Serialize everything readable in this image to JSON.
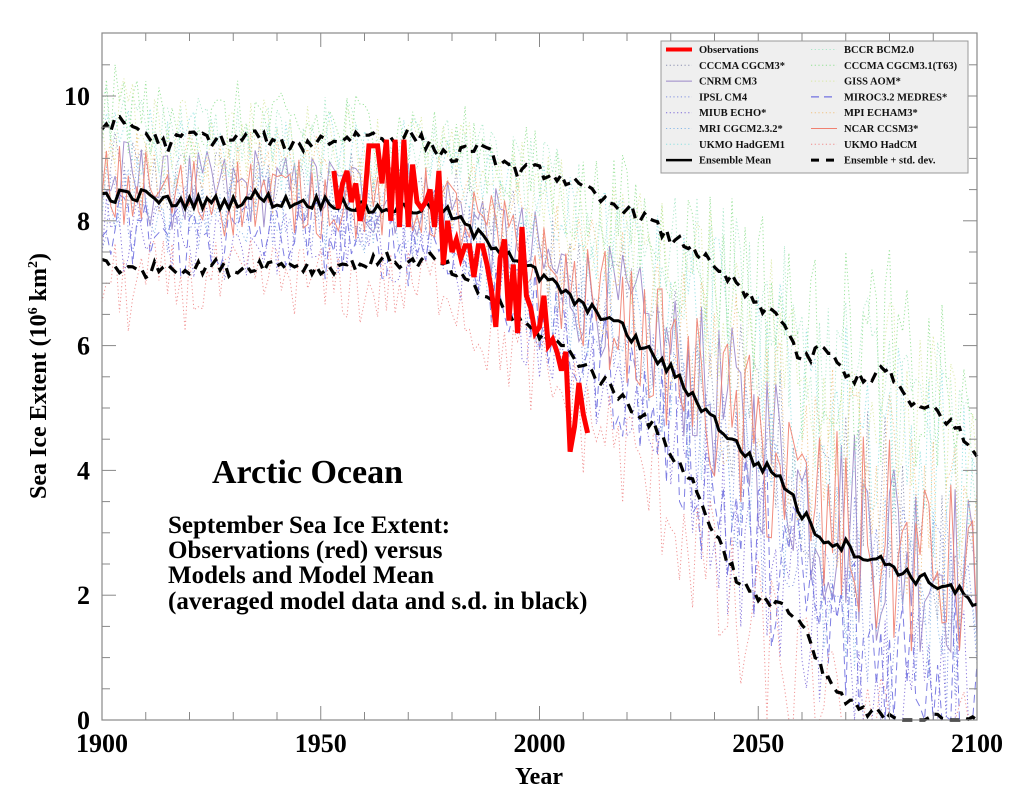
{
  "chart_data": {
    "type": "line",
    "title": "Arctic Ocean",
    "subtitle_lines": [
      "September Sea Ice Extent:",
      "Observations (red) versus",
      "Models and Model Mean",
      "(averaged model data and s.d. in black)"
    ],
    "xlabel": "Year",
    "ylabel": "Sea Ice Extent (10⁶ km²)",
    "ylabel_parts": {
      "main": "Sea Ice Extent (10",
      "sup1": "6",
      "mid": " km",
      "sup2": "2",
      "end": ")"
    },
    "xlim": [
      1900,
      2100
    ],
    "ylim": [
      0,
      11
    ],
    "x_ticks": [
      1900,
      1950,
      2000,
      2050,
      2100
    ],
    "x_tick_labels": [
      "1900",
      "1950",
      "2000",
      "2050",
      "2100"
    ],
    "y_ticks": [
      0,
      2,
      4,
      6,
      8,
      10
    ],
    "y_tick_labels": [
      "0",
      "2",
      "4",
      "6",
      "8",
      "10"
    ],
    "x_minor_step": 10,
    "y_minor_step": 1,
    "grid": false,
    "legend_position": "top-right",
    "legend": [
      {
        "label": "Observations",
        "color": "#ff0000",
        "style": "thick-solid",
        "column": 0
      },
      {
        "label": "CCCMA CGCM3*",
        "color": "#8a8fb0",
        "style": "dotted",
        "column": 0
      },
      {
        "label": "CNRM CM3",
        "color": "#9a86c8",
        "style": "solid",
        "column": 0
      },
      {
        "label": "IPSL CM4",
        "color": "#7f8fe0",
        "style": "dotted",
        "column": 0
      },
      {
        "label": "MIUB ECHO*",
        "color": "#7a66d8",
        "style": "dotted",
        "column": 0
      },
      {
        "label": "MRI CGCM2.3.2*",
        "color": "#88b8e8",
        "style": "dotted",
        "column": 0
      },
      {
        "label": "UKMO HadGEM1",
        "color": "#8ee0e0",
        "style": "dotted",
        "column": 0
      },
      {
        "label": "Ensemble Mean",
        "color": "#000000",
        "style": "solid",
        "column": 0
      },
      {
        "label": "BCCR BCM2.0",
        "color": "#a8e8c8",
        "style": "dotted",
        "column": 1
      },
      {
        "label": "CCCMA CGCM3.1(T63)",
        "color": "#90e090",
        "style": "dotted",
        "column": 1
      },
      {
        "label": "GISS AOM*",
        "color": "#d8e8a0",
        "style": "dotted",
        "column": 1
      },
      {
        "label": "MIROC3.2 MEDRES*",
        "color": "#7070e0",
        "style": "dashed",
        "column": 1
      },
      {
        "label": "MPI ECHAM3*",
        "color": "#f0c080",
        "style": "dotted",
        "column": 1
      },
      {
        "label": "NCAR CCSM3*",
        "color": "#f08070",
        "style": "solid",
        "column": 1
      },
      {
        "label": "UKMO HadCM",
        "color": "#f08888",
        "style": "dotted",
        "column": 1
      },
      {
        "label": "Ensemble + std. dev.",
        "color": "#000000",
        "style": "dashed",
        "column": 1
      }
    ],
    "series": [
      {
        "name": "Observations",
        "color": "#ff0000",
        "x": [
          1953,
          1954,
          1955,
          1956,
          1957,
          1958,
          1959,
          1960,
          1961,
          1962,
          1963,
          1964,
          1965,
          1966,
          1967,
          1968,
          1969,
          1970,
          1971,
          1972,
          1973,
          1974,
          1975,
          1976,
          1977,
          1978,
          1979,
          1980,
          1981,
          1982,
          1983,
          1984,
          1985,
          1986,
          1987,
          1988,
          1989,
          1990,
          1991,
          1992,
          1993,
          1994,
          1995,
          1996,
          1997,
          1998,
          1999,
          2000,
          2001,
          2002,
          2003,
          2004,
          2005,
          2006,
          2007,
          2008,
          2009,
          2010,
          2011
        ],
        "values": [
          8.8,
          8.2,
          8.6,
          8.8,
          8.3,
          8.6,
          8.0,
          8.3,
          9.2,
          9.2,
          9.2,
          8.6,
          9.3,
          8.0,
          9.3,
          7.9,
          9.3,
          7.9,
          8.9,
          8.3,
          8.2,
          8.3,
          8.5,
          7.9,
          8.8,
          7.3,
          8.0,
          7.5,
          7.7,
          7.4,
          7.6,
          7.6,
          7.1,
          7.6,
          7.6,
          7.3,
          6.9,
          6.3,
          7.4,
          7.7,
          6.4,
          7.3,
          6.2,
          7.9,
          6.8,
          6.6,
          6.2,
          6.3,
          6.8,
          6.0,
          6.1,
          5.9,
          5.6,
          5.9,
          4.3,
          4.7,
          5.4,
          4.9,
          4.6
        ]
      },
      {
        "name": "Ensemble Mean",
        "color": "#000000",
        "x": [
          1900,
          1905,
          1910,
          1915,
          1920,
          1925,
          1930,
          1935,
          1940,
          1945,
          1950,
          1955,
          1960,
          1965,
          1970,
          1975,
          1980,
          1985,
          1990,
          1995,
          2000,
          2005,
          2010,
          2015,
          2020,
          2025,
          2030,
          2035,
          2040,
          2045,
          2050,
          2055,
          2060,
          2065,
          2070,
          2075,
          2080,
          2085,
          2090,
          2095,
          2100
        ],
        "values": [
          8.4,
          8.4,
          8.4,
          8.3,
          8.3,
          8.3,
          8.3,
          8.4,
          8.3,
          8.3,
          8.3,
          8.3,
          8.2,
          8.2,
          8.2,
          8.2,
          8.1,
          7.8,
          7.6,
          7.4,
          7.1,
          6.9,
          6.6,
          6.5,
          6.2,
          5.9,
          5.6,
          5.2,
          4.8,
          4.4,
          4.1,
          3.9,
          3.3,
          2.9,
          2.8,
          2.6,
          2.5,
          2.3,
          2.2,
          2.1,
          1.8
        ]
      },
      {
        "name": "Ensemble + std. dev.",
        "color": "#000000",
        "x": [
          1900,
          1905,
          1910,
          1915,
          1920,
          1925,
          1930,
          1935,
          1940,
          1945,
          1950,
          1955,
          1960,
          1965,
          1970,
          1975,
          1980,
          1985,
          1990,
          1995,
          2000,
          2005,
          2010,
          2015,
          2020,
          2025,
          2030,
          2035,
          2040,
          2045,
          2050,
          2055,
          2060,
          2065,
          2070,
          2075,
          2080,
          2085,
          2090,
          2095,
          2100
        ],
        "values": [
          9.5,
          9.6,
          9.4,
          9.2,
          9.4,
          9.3,
          9.3,
          9.4,
          9.2,
          9.2,
          9.3,
          9.3,
          9.4,
          9.3,
          9.4,
          9.2,
          9.0,
          9.2,
          9.0,
          8.8,
          8.8,
          8.7,
          8.5,
          8.3,
          8.2,
          8.0,
          7.7,
          7.6,
          7.2,
          7.0,
          6.6,
          6.5,
          5.7,
          6.0,
          5.5,
          5.5,
          5.6,
          5.0,
          5.0,
          4.7,
          4.2
        ]
      },
      {
        "name": "Ensemble - std. dev.",
        "color": "#000000",
        "x": [
          1900,
          1905,
          1910,
          1915,
          1920,
          1925,
          1930,
          1935,
          1940,
          1945,
          1950,
          1955,
          1960,
          1965,
          1970,
          1975,
          1980,
          1985,
          1990,
          1995,
          2000,
          2005,
          2010,
          2015,
          2020,
          2025,
          2030,
          2035,
          2040,
          2045,
          2050,
          2055,
          2060,
          2065,
          2070,
          2075,
          2080,
          2085,
          2090,
          2095,
          2100
        ],
        "values": [
          7.4,
          7.2,
          7.2,
          7.3,
          7.2,
          7.3,
          7.2,
          7.3,
          7.3,
          7.3,
          7.2,
          7.3,
          7.3,
          7.4,
          7.3,
          7.4,
          7.2,
          6.9,
          6.7,
          6.4,
          6.2,
          6.0,
          5.7,
          5.4,
          5.1,
          4.8,
          4.3,
          3.8,
          3.0,
          2.3,
          1.9,
          1.9,
          1.5,
          0.7,
          0.3,
          0.1,
          0.1,
          0.0,
          0.0,
          0.0,
          0.0
        ]
      }
    ],
    "model_series_note": "13 individual model runs drawn as thin colored lines spanning roughly the ensemble ± std. dev. envelope"
  }
}
